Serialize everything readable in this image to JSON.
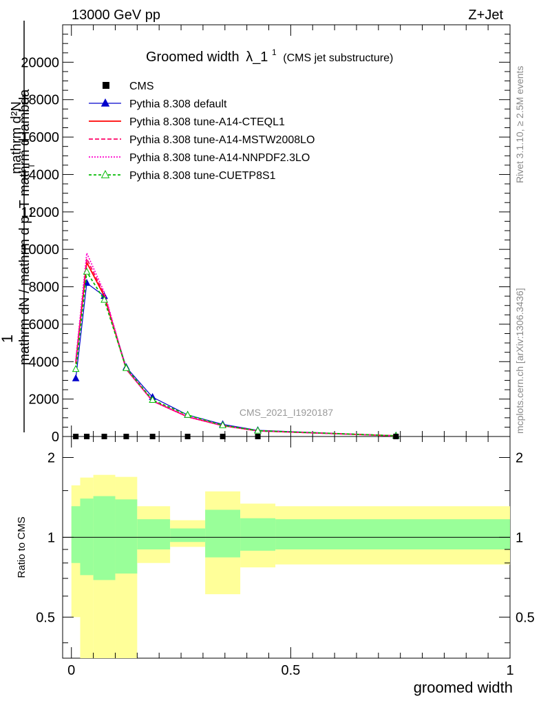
{
  "header": {
    "energy": "13000 GeV pp",
    "process": "Z+Jet",
    "plot_title": "Groomed width",
    "title_symbol": "λ_1",
    "title_sup": "1",
    "title_suffix": "(CMS jet substructure)",
    "rivet": "Rivet 3.1.10, ≥ 2.5M events",
    "mcplots": "mcplots.cern.ch [arXiv:1306.3436]",
    "analysis": "CMS_2021_I1920187"
  },
  "axes": {
    "ylabel_main_1": "1",
    "ylabel_main_2": "mathrm dN / mathrm d p_T mathrm d lambda",
    "ylabel_main_numerator": "mathrm d²N",
    "ylabel_main_sub": "T",
    "ylabel_ratio": "Ratio to CMS",
    "xlabel": "groomed width",
    "main_yticks": [
      "0",
      "2000",
      "4000",
      "6000",
      "8000",
      "10000",
      "12000",
      "14000",
      "16000",
      "18000",
      "20000"
    ],
    "ratio_yticks": [
      "0.5",
      "1",
      "2"
    ],
    "xticks": [
      "0",
      "0.5",
      "1"
    ]
  },
  "legend": [
    {
      "label": "CMS",
      "color": "#000000",
      "style": "square"
    },
    {
      "label": "Pythia 8.308 default",
      "color": "#0000cc",
      "style": "line-triangle"
    },
    {
      "label": "Pythia 8.308 tune-A14-CTEQL1",
      "color": "#ff0000",
      "style": "solid"
    },
    {
      "label": "Pythia 8.308 tune-A14-MSTW2008LO",
      "color": "#ff0066",
      "style": "dashed"
    },
    {
      "label": "Pythia 8.308 tune-A14-NNPDF2.3LO",
      "color": "#ff00cc",
      "style": "dotted"
    },
    {
      "label": "Pythia 8.308 tune-CUETP8S1",
      "color": "#00bb00",
      "style": "dashed-open-triangle"
    }
  ],
  "chart_data": {
    "type": "line",
    "title": "Groomed width λ_1^1 (CMS jet substructure)",
    "xlabel": "groomed width",
    "ylabel": "1 / mathrm dN / mathrm d p_T mathrm d lambda",
    "xlim": [
      -0.02,
      1.0
    ],
    "ylim": [
      0,
      22000
    ],
    "ratio_ylim": [
      0.35,
      2.4
    ],
    "ratio_scale": "log",
    "grid": false,
    "legend_position": "top-left",
    "x": [
      0.01,
      0.035,
      0.075,
      0.125,
      0.185,
      0.265,
      0.345,
      0.425,
      0.74
    ],
    "cms": [
      0,
      0,
      0,
      0,
      0,
      0,
      0,
      0,
      0
    ],
    "series": [
      {
        "name": "Pythia 8.308 default",
        "color": "#0000cc",
        "dash": "",
        "marker": "triangle-filled",
        "values": [
          3100,
          8200,
          7500,
          3700,
          2100,
          1150,
          650,
          330,
          40
        ]
      },
      {
        "name": "Pythia 8.308 tune-A14-CTEQL1",
        "color": "#ff0000",
        "dash": "",
        "marker": "none",
        "values": [
          3900,
          9300,
          7500,
          3600,
          1900,
          1050,
          580,
          300,
          35
        ]
      },
      {
        "name": "Pythia 8.308 tune-A14-MSTW2008LO",
        "color": "#ff0066",
        "dash": "6,3",
        "marker": "none",
        "values": [
          4000,
          9500,
          7600,
          3600,
          1900,
          1050,
          580,
          300,
          35
        ]
      },
      {
        "name": "Pythia 8.308 tune-A14-NNPDF2.3LO",
        "color": "#ff00cc",
        "dash": "2,2",
        "marker": "none",
        "values": [
          4100,
          9800,
          7700,
          3600,
          1900,
          1060,
          590,
          300,
          35
        ]
      },
      {
        "name": "Pythia 8.308 tune-CUETP8S1",
        "color": "#00bb00",
        "dash": "4,3",
        "marker": "triangle-open",
        "values": [
          3600,
          8800,
          7300,
          3650,
          1950,
          1150,
          600,
          310,
          40
        ]
      }
    ],
    "ratio_bands": [
      {
        "x0": 0.0,
        "x1": 0.02,
        "inner_lo": 0.8,
        "inner_hi": 1.31,
        "outer_lo": 0.5,
        "outer_hi": 1.57
      },
      {
        "x0": 0.02,
        "x1": 0.05,
        "inner_lo": 0.72,
        "inner_hi": 1.4,
        "outer_lo": 0.3,
        "outer_hi": 1.68
      },
      {
        "x0": 0.05,
        "x1": 0.1,
        "inner_lo": 0.69,
        "inner_hi": 1.43,
        "outer_lo": 0.3,
        "outer_hi": 1.72
      },
      {
        "x0": 0.1,
        "x1": 0.15,
        "inner_lo": 0.73,
        "inner_hi": 1.39,
        "outer_lo": 0.3,
        "outer_hi": 1.69
      },
      {
        "x0": 0.15,
        "x1": 0.225,
        "inner_lo": 0.9,
        "inner_hi": 1.17,
        "outer_lo": 0.8,
        "outer_hi": 1.31
      },
      {
        "x0": 0.225,
        "x1": 0.305,
        "inner_lo": 0.96,
        "inner_hi": 1.08,
        "outer_lo": 0.92,
        "outer_hi": 1.16
      },
      {
        "x0": 0.305,
        "x1": 0.385,
        "inner_lo": 0.84,
        "inner_hi": 1.27,
        "outer_lo": 0.61,
        "outer_hi": 1.49
      },
      {
        "x0": 0.385,
        "x1": 0.465,
        "inner_lo": 0.89,
        "inner_hi": 1.18,
        "outer_lo": 0.77,
        "outer_hi": 1.34
      },
      {
        "x0": 0.465,
        "x1": 1.0,
        "inner_lo": 0.9,
        "inner_hi": 1.17,
        "outer_lo": 0.79,
        "outer_hi": 1.31
      }
    ],
    "ratio_colors": {
      "inner": "#99ff99",
      "outer": "#ffff99"
    }
  }
}
